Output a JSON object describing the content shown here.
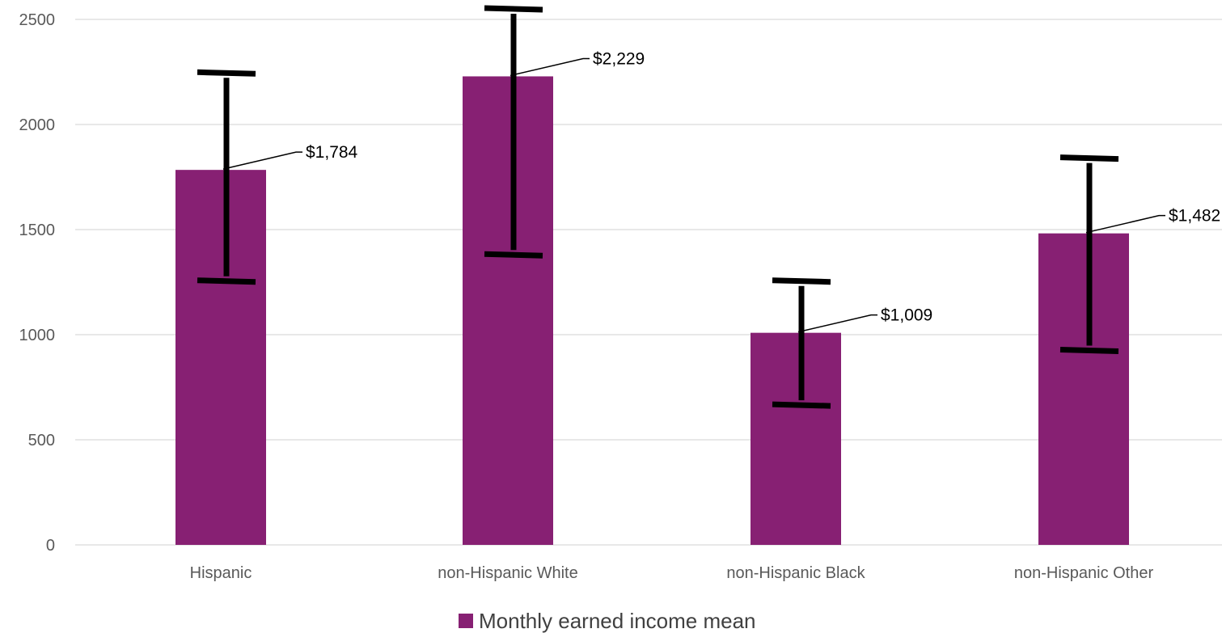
{
  "chart_data": {
    "type": "bar",
    "categories": [
      "Hispanic",
      "non-Hispanic White",
      "non-Hispanic Black",
      "non-Hispanic Other"
    ],
    "series": [
      {
        "name": "Monthly earned income mean",
        "values": [
          1784,
          2229,
          1009,
          1482
        ],
        "data_labels": [
          "$1,784",
          "$2,229",
          "$1,009",
          "$1,482"
        ],
        "error_low": [
          1255,
          1380,
          665,
          925
        ],
        "error_high": [
          2245,
          2550,
          1255,
          1840
        ],
        "color": "#872073"
      }
    ],
    "y_ticks": [
      "0",
      "500",
      "1000",
      "1500",
      "2000",
      "2500"
    ],
    "ylim": [
      0,
      2500
    ],
    "title": "",
    "xlabel": "",
    "ylabel": "",
    "grid": true,
    "legend_position": "bottom",
    "gridline_color": "#d9d9d9",
    "error_bar_color": "#000000"
  }
}
